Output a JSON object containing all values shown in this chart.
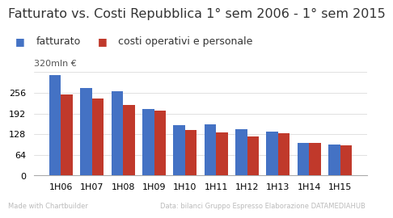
{
  "title": "Fatturato vs. Costi Repubblica 1° sem 2006 - 1° sem 2015",
  "categories": [
    "1H06",
    "1H07",
    "1H08",
    "1H09",
    "1H10",
    "1H11",
    "1H12",
    "1H13",
    "1H14",
    "1H15"
  ],
  "fatturato": [
    310,
    270,
    262,
    205,
    155,
    158,
    143,
    135,
    100,
    95
  ],
  "costi": [
    252,
    238,
    218,
    200,
    140,
    133,
    122,
    132,
    100,
    93
  ],
  "color_fatturato": "#4472C4",
  "color_costi": "#C0392B",
  "ylabel": "320mln €",
  "yticks": [
    0,
    64,
    128,
    192,
    256,
    320
  ],
  "ymax": 335,
  "legend_fatturato": "fatturato",
  "legend_costi": "costi operativi e personale",
  "footer_left": "Made with Chartbuilder",
  "footer_right": "Data: bilanci Gruppo Espresso Elaborazione DATAMEDIAHUB",
  "background_color": "#ffffff",
  "title_fontsize": 11.5,
  "legend_fontsize": 9,
  "tick_fontsize": 8,
  "footer_fontsize": 6,
  "bar_width": 0.38
}
